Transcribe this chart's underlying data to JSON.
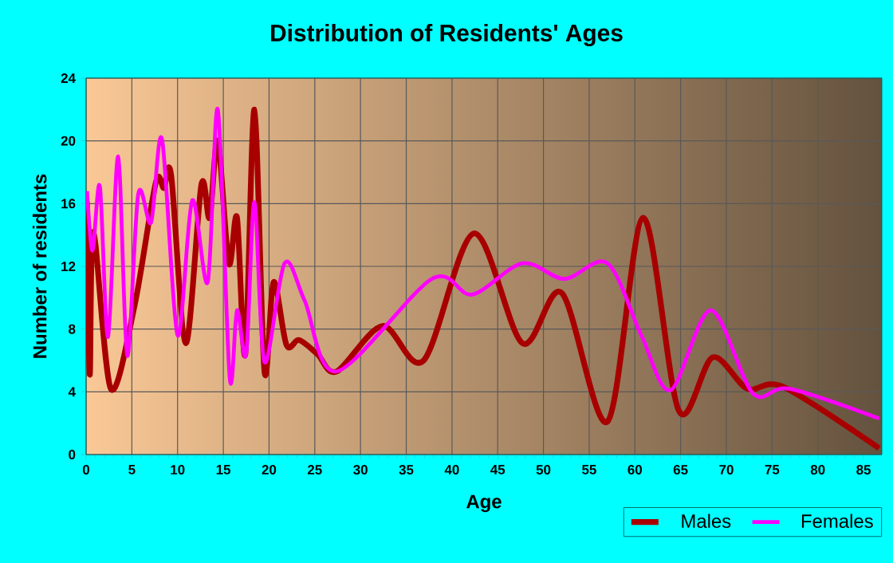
{
  "chart_data": {
    "type": "line",
    "title": "Distribution of Residents' Ages",
    "xlabel": "Age",
    "ylabel": "Number of residents",
    "xlim": [
      0,
      87
    ],
    "xticks": [
      0,
      5,
      10,
      15,
      20,
      25,
      30,
      35,
      40,
      45,
      50,
      55,
      60,
      65,
      70,
      75,
      80,
      85
    ],
    "ylim": [
      0,
      24
    ],
    "yticks": [
      0,
      4,
      8,
      12,
      16,
      20,
      24
    ],
    "grid": true,
    "legend": "bottom right",
    "marker": "none",
    "line_style": "solid",
    "series": [
      {
        "name": "Males",
        "color": "#a80000",
        "x": [
          0.1,
          0.4,
          0.8,
          2.7,
          5.3,
          7.6,
          8.5,
          9.3,
          10.9,
          12.6,
          13.5,
          14.4,
          15.6,
          16.5,
          17.4,
          18.4,
          19.5,
          20.5,
          21.9,
          23.3,
          25.3,
          27.4,
          32.4,
          36.9,
          42.4,
          47.7,
          52,
          57,
          60.9,
          64.8,
          68.5,
          72.3,
          76.3,
          86.7
        ],
        "values": [
          16.1,
          5.1,
          14.2,
          4.2,
          9.5,
          17.3,
          17,
          17.8,
          7.1,
          17.2,
          15.1,
          20,
          12.2,
          15.1,
          6.4,
          22,
          5.3,
          11,
          7,
          7.3,
          6.4,
          5.3,
          8.2,
          6,
          14.1,
          7.1,
          10.3,
          2.1,
          15.1,
          2.8,
          6.2,
          4.2,
          4.3,
          0.4
        ]
      },
      {
        "name": "Females",
        "color": "#ff00ff",
        "x": [
          0.1,
          0.7,
          1.5,
          2.4,
          3.5,
          4.5,
          5.7,
          7.1,
          8.3,
          10,
          11.6,
          13.3,
          14.4,
          15.7,
          16.5,
          17.5,
          18.4,
          19.5,
          21.7,
          23.9,
          27.4,
          37.8,
          42.2,
          47.7,
          52.3,
          57,
          60.7,
          63.9,
          68.3,
          72.9,
          76.9,
          86.7
        ],
        "values": [
          16.8,
          13,
          17.1,
          7.5,
          19,
          6.3,
          16.6,
          14.8,
          20.1,
          7.6,
          16.2,
          11,
          22,
          4.9,
          9.2,
          6.4,
          16.1,
          5.9,
          12.2,
          9.8,
          5.3,
          11.2,
          10.2,
          12.2,
          11.2,
          12.2,
          7.6,
          4.1,
          9.2,
          3.9,
          4.2,
          2.3
        ]
      }
    ]
  }
}
